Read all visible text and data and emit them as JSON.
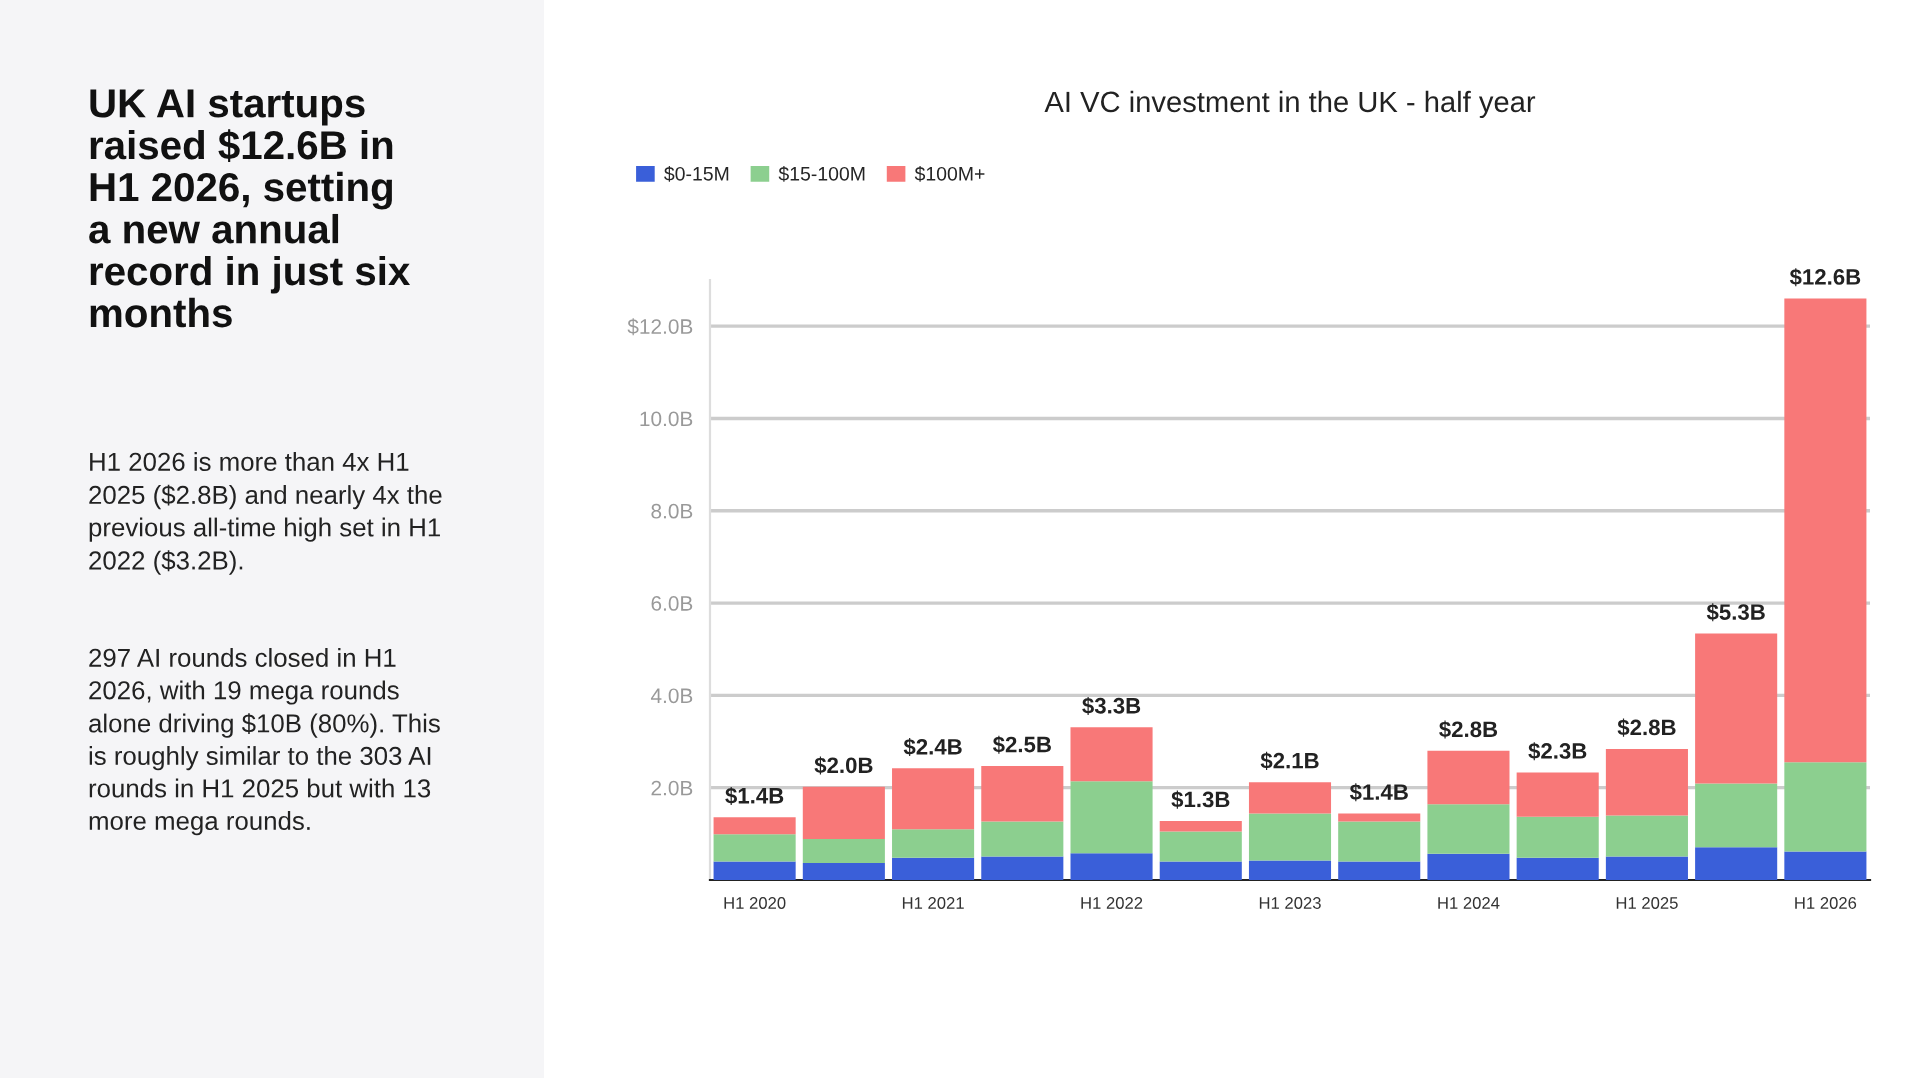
{
  "chart_data": {
    "type": "bar",
    "stacked": true,
    "title": "UK AI startups raised $12.6B in H1 2026, setting a new annual record in just six months",
    "subtitle": "AI VC investment in the UK - half year",
    "annotations": [
      "H1 2026 is more than 4x H1 2025 ($2.8B) and nearly 4x the previous all-time high set in H1 2022 ($3.2B).",
      "297 AI rounds closed in H1 2026, with 19 mega rounds alone driving $10B (80%). This is roughly similar to the 303 AI rounds in H1 2025 but with 13 more mega rounds."
    ],
    "categories": [
      "H1 2020",
      null,
      "H1 2021",
      null,
      "H1 2022",
      null,
      "H1 2023",
      null,
      "H1 2024",
      null,
      "H1 2025",
      null,
      "H1 2026"
    ],
    "series": [
      {
        "name": "$0-15M",
        "color": "#3a5fd9",
        "values": [
          0.4,
          0.37,
          0.48,
          0.51,
          0.58,
          0.4,
          0.42,
          0.4,
          0.57,
          0.48,
          0.51,
          0.71,
          0.62
        ]
      },
      {
        "name": "$15-100M",
        "color": "#8ccf8f",
        "values": [
          0.59,
          0.52,
          0.62,
          0.76,
          1.56,
          0.65,
          1.02,
          0.87,
          1.07,
          0.89,
          0.89,
          1.38,
          1.93
        ]
      },
      {
        "name": "$100M+",
        "color": "#f87878",
        "values": [
          0.37,
          1.13,
          1.32,
          1.2,
          1.17,
          0.23,
          0.68,
          0.17,
          1.16,
          0.96,
          1.44,
          3.25,
          10.05
        ]
      }
    ],
    "totals": [
      "$1.4B",
      "$2.0B",
      "$2.4B",
      "$2.5B",
      "$3.3B",
      "$1.3B",
      "$2.1B",
      "$1.4B",
      "$2.8B",
      "$2.3B",
      "$2.8B",
      "$5.3B",
      "$12.6B"
    ],
    "ylim": [
      0,
      13
    ],
    "yticks": [
      {
        "value": 2,
        "label": "2.0B"
      },
      {
        "value": 4,
        "label": "4.0B"
      },
      {
        "value": 6,
        "label": "6.0B"
      },
      {
        "value": 8,
        "label": "8.0B"
      },
      {
        "value": 10,
        "label": "10.0B"
      },
      {
        "value": 12,
        "label": "$12.0B"
      }
    ],
    "grid": "y",
    "legend": "top left"
  }
}
